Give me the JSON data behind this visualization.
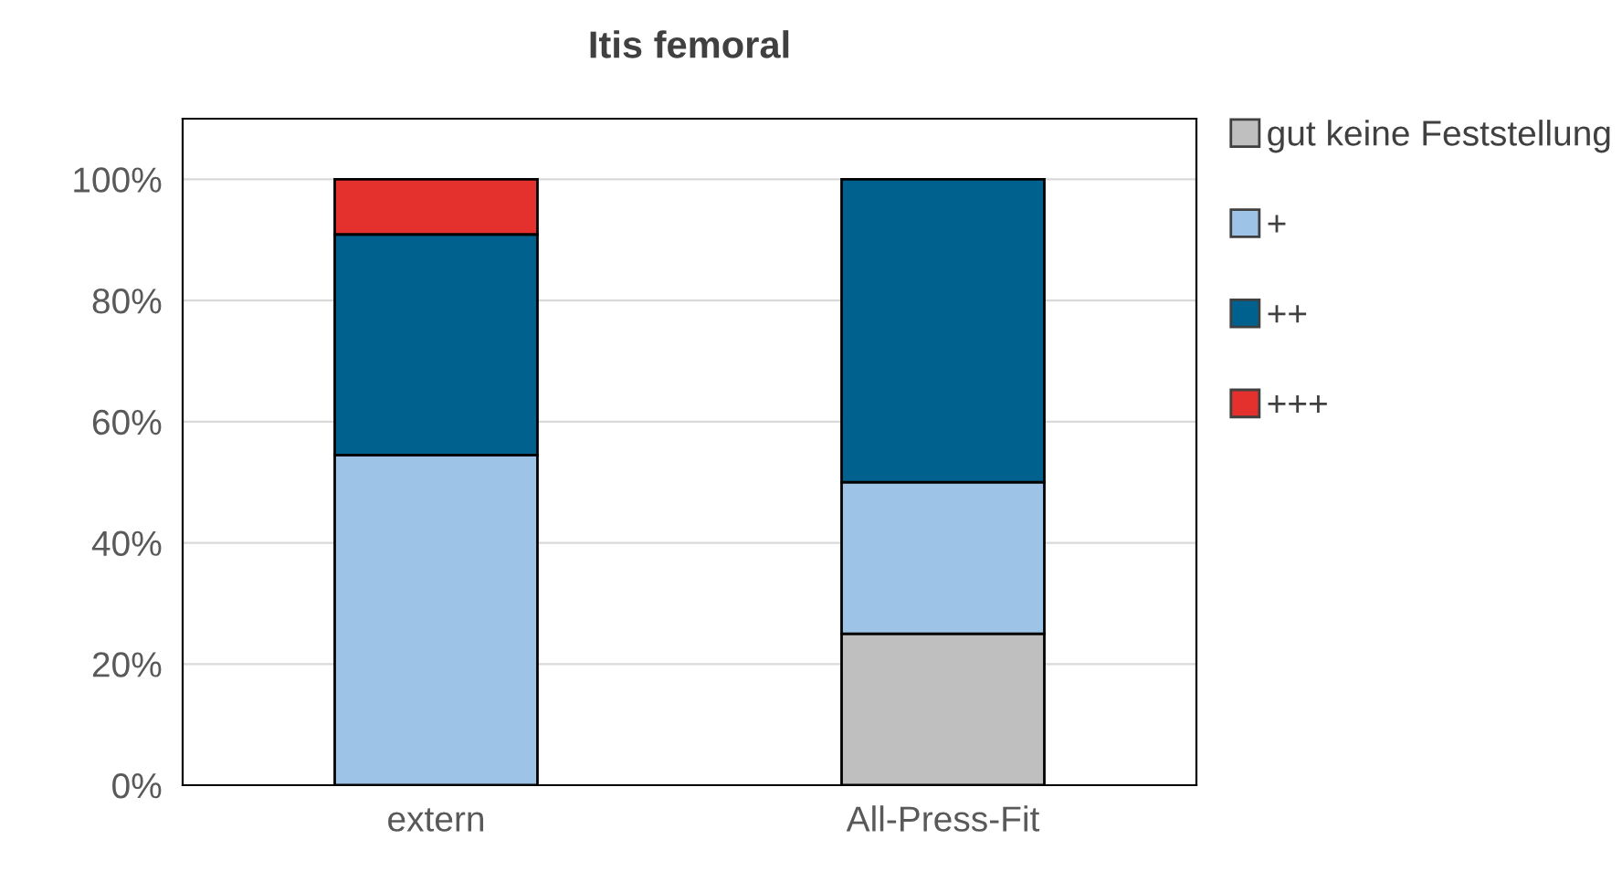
{
  "chart_data": {
    "type": "bar",
    "title": "Itis femoral",
    "categories": [
      "extern",
      "All-Press-Fit"
    ],
    "stacked": true,
    "series": [
      {
        "name": "gut keine Feststellung",
        "color": "#bfbfbf",
        "values": [
          null,
          25
        ]
      },
      {
        "name": "+",
        "color": "#9dc3e6",
        "values": [
          54.5,
          25
        ]
      },
      {
        "name": "++",
        "color": "#00618e",
        "values": [
          36.4,
          50
        ]
      },
      {
        "name": "+++",
        "color": "#e4312d",
        "values": [
          9.1,
          null
        ]
      }
    ],
    "ylim": [
      0,
      110
    ],
    "yticks": [
      {
        "value": 0,
        "label": "0%"
      },
      {
        "value": 20,
        "label": "20%"
      },
      {
        "value": 40,
        "label": "40%"
      },
      {
        "value": 60,
        "label": "60%"
      },
      {
        "value": 80,
        "label": "80%"
      },
      {
        "value": 100,
        "label": "100%"
      }
    ],
    "grid": "y",
    "legend": "right"
  }
}
